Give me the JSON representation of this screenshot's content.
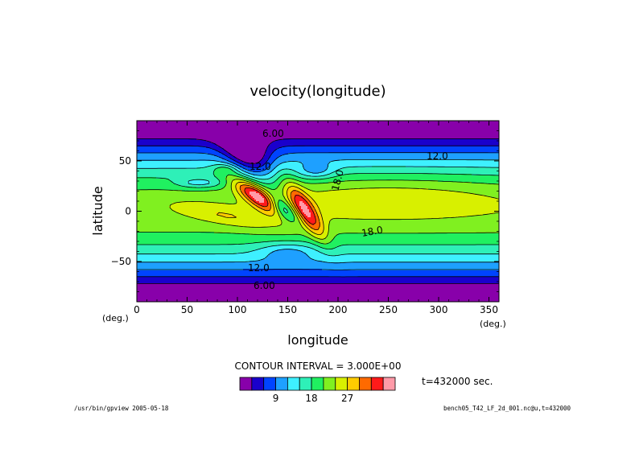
{
  "chart_data": {
    "type": "heatmap",
    "title": "velocity(longitude)",
    "xlabel": "longitude",
    "ylabel": "latitude",
    "x_unit": "(deg.)",
    "y_unit": "(deg.)",
    "xlim": [
      0,
      360
    ],
    "ylim": [
      -90,
      90
    ],
    "x_ticks": [
      0,
      50,
      100,
      150,
      200,
      250,
      300,
      350
    ],
    "y_ticks": [
      -50,
      0,
      50
    ],
    "contour_interval_label": "CONTOUR INTERVAL = 3.000E+00",
    "contour_labels": [
      "6.00",
      "12.0",
      "18.0",
      "12.0",
      "18.0",
      "12.0",
      "6.00"
    ],
    "colorbar": {
      "levels": [
        0,
        3,
        6,
        9,
        12,
        15,
        18,
        21,
        24,
        27,
        30,
        33,
        36
      ],
      "tick_values": [
        9,
        18,
        27
      ],
      "colors": [
        "#8800aa",
        "#1a00cc",
        "#0044ff",
        "#1ea0ff",
        "#3ef0ff",
        "#2ef0b8",
        "#20f060",
        "#80f020",
        "#d8f000",
        "#ffcc00",
        "#ff6a00",
        "#ff1a1a",
        "#ff9aa8"
      ]
    },
    "time_label": "t=432000 sec."
  },
  "footer": {
    "left": "/usr/bin/gpview  2005-05-18",
    "right": "bench05_T42_LF_2d_001.nc@u,t=432000"
  }
}
